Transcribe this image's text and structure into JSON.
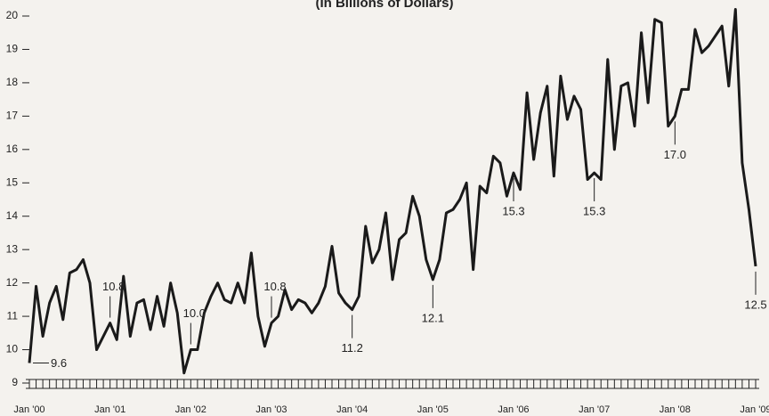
{
  "chart_data": {
    "type": "line",
    "title": "(In Billions of Dollars)",
    "categories": [
      "Jan '00",
      null,
      null,
      null,
      null,
      null,
      null,
      null,
      null,
      null,
      null,
      null,
      "Jan '01",
      null,
      null,
      null,
      null,
      null,
      null,
      null,
      null,
      null,
      null,
      null,
      "Jan '02",
      null,
      null,
      null,
      null,
      null,
      null,
      null,
      null,
      null,
      null,
      null,
      "Jan '03",
      null,
      null,
      null,
      null,
      null,
      null,
      null,
      null,
      null,
      null,
      null,
      "Jan '04",
      null,
      null,
      null,
      null,
      null,
      null,
      null,
      null,
      null,
      null,
      null,
      "Jan '05",
      null,
      null,
      null,
      null,
      null,
      null,
      null,
      null,
      null,
      null,
      null,
      "Jan '06",
      null,
      null,
      null,
      null,
      null,
      null,
      null,
      null,
      null,
      null,
      null,
      "Jan '07",
      null,
      null,
      null,
      null,
      null,
      null,
      null,
      null,
      null,
      null,
      null,
      "Jan '08",
      null,
      null,
      null,
      null,
      null,
      null,
      null,
      null,
      null,
      null,
      null,
      "Jan '09"
    ],
    "values": [
      9.6,
      11.9,
      10.4,
      11.4,
      11.9,
      10.9,
      12.3,
      12.4,
      12.7,
      12.0,
      10.0,
      10.4,
      10.8,
      10.3,
      12.2,
      10.4,
      11.4,
      11.5,
      10.6,
      11.6,
      10.7,
      12.0,
      11.1,
      9.3,
      10.0,
      10.0,
      11.1,
      11.6,
      12.0,
      11.5,
      11.4,
      12.0,
      11.4,
      12.9,
      11.0,
      10.1,
      10.8,
      11.0,
      11.8,
      11.2,
      11.5,
      11.4,
      11.1,
      11.4,
      11.9,
      13.1,
      11.7,
      11.4,
      11.2,
      11.6,
      13.7,
      12.6,
      13.0,
      14.1,
      12.1,
      13.3,
      13.5,
      14.6,
      14.0,
      12.7,
      12.1,
      12.7,
      14.1,
      14.2,
      14.5,
      15.0,
      12.4,
      14.9,
      14.7,
      15.8,
      15.6,
      14.6,
      15.3,
      14.8,
      17.7,
      15.7,
      17.1,
      17.9,
      15.2,
      18.2,
      16.9,
      17.6,
      17.2,
      15.1,
      15.3,
      15.1,
      18.7,
      16.0,
      17.9,
      18.0,
      16.7,
      19.5,
      17.4,
      19.9,
      19.8,
      16.7,
      17.0,
      17.8,
      17.8,
      19.6,
      18.9,
      19.1,
      19.4,
      19.7,
      17.9,
      20.2,
      15.6,
      14.2,
      12.5
    ],
    "value_labels": [
      "9.6",
      null,
      null,
      null,
      null,
      null,
      null,
      null,
      null,
      null,
      null,
      null,
      "10.8",
      null,
      null,
      null,
      null,
      null,
      null,
      null,
      null,
      null,
      null,
      null,
      "10.0",
      null,
      null,
      null,
      null,
      null,
      null,
      null,
      null,
      null,
      null,
      null,
      "10.8",
      null,
      null,
      null,
      null,
      null,
      null,
      null,
      null,
      null,
      null,
      null,
      "11.2",
      null,
      null,
      null,
      null,
      null,
      null,
      null,
      null,
      null,
      null,
      null,
      "12.1",
      null,
      null,
      null,
      null,
      null,
      null,
      null,
      null,
      null,
      null,
      null,
      "15.3",
      null,
      null,
      null,
      null,
      null,
      null,
      null,
      null,
      null,
      null,
      null,
      "15.3",
      null,
      null,
      null,
      null,
      null,
      null,
      null,
      null,
      null,
      null,
      null,
      "17.0",
      null,
      null,
      null,
      null,
      null,
      null,
      null,
      null,
      null,
      null,
      null,
      "12.5"
    ],
    "color": "#1a1a1a",
    "ylim": [
      9,
      20
    ],
    "yticks": [
      9,
      10,
      11,
      12,
      13,
      14,
      15,
      16,
      17,
      18,
      19,
      20
    ],
    "grid": false
  }
}
